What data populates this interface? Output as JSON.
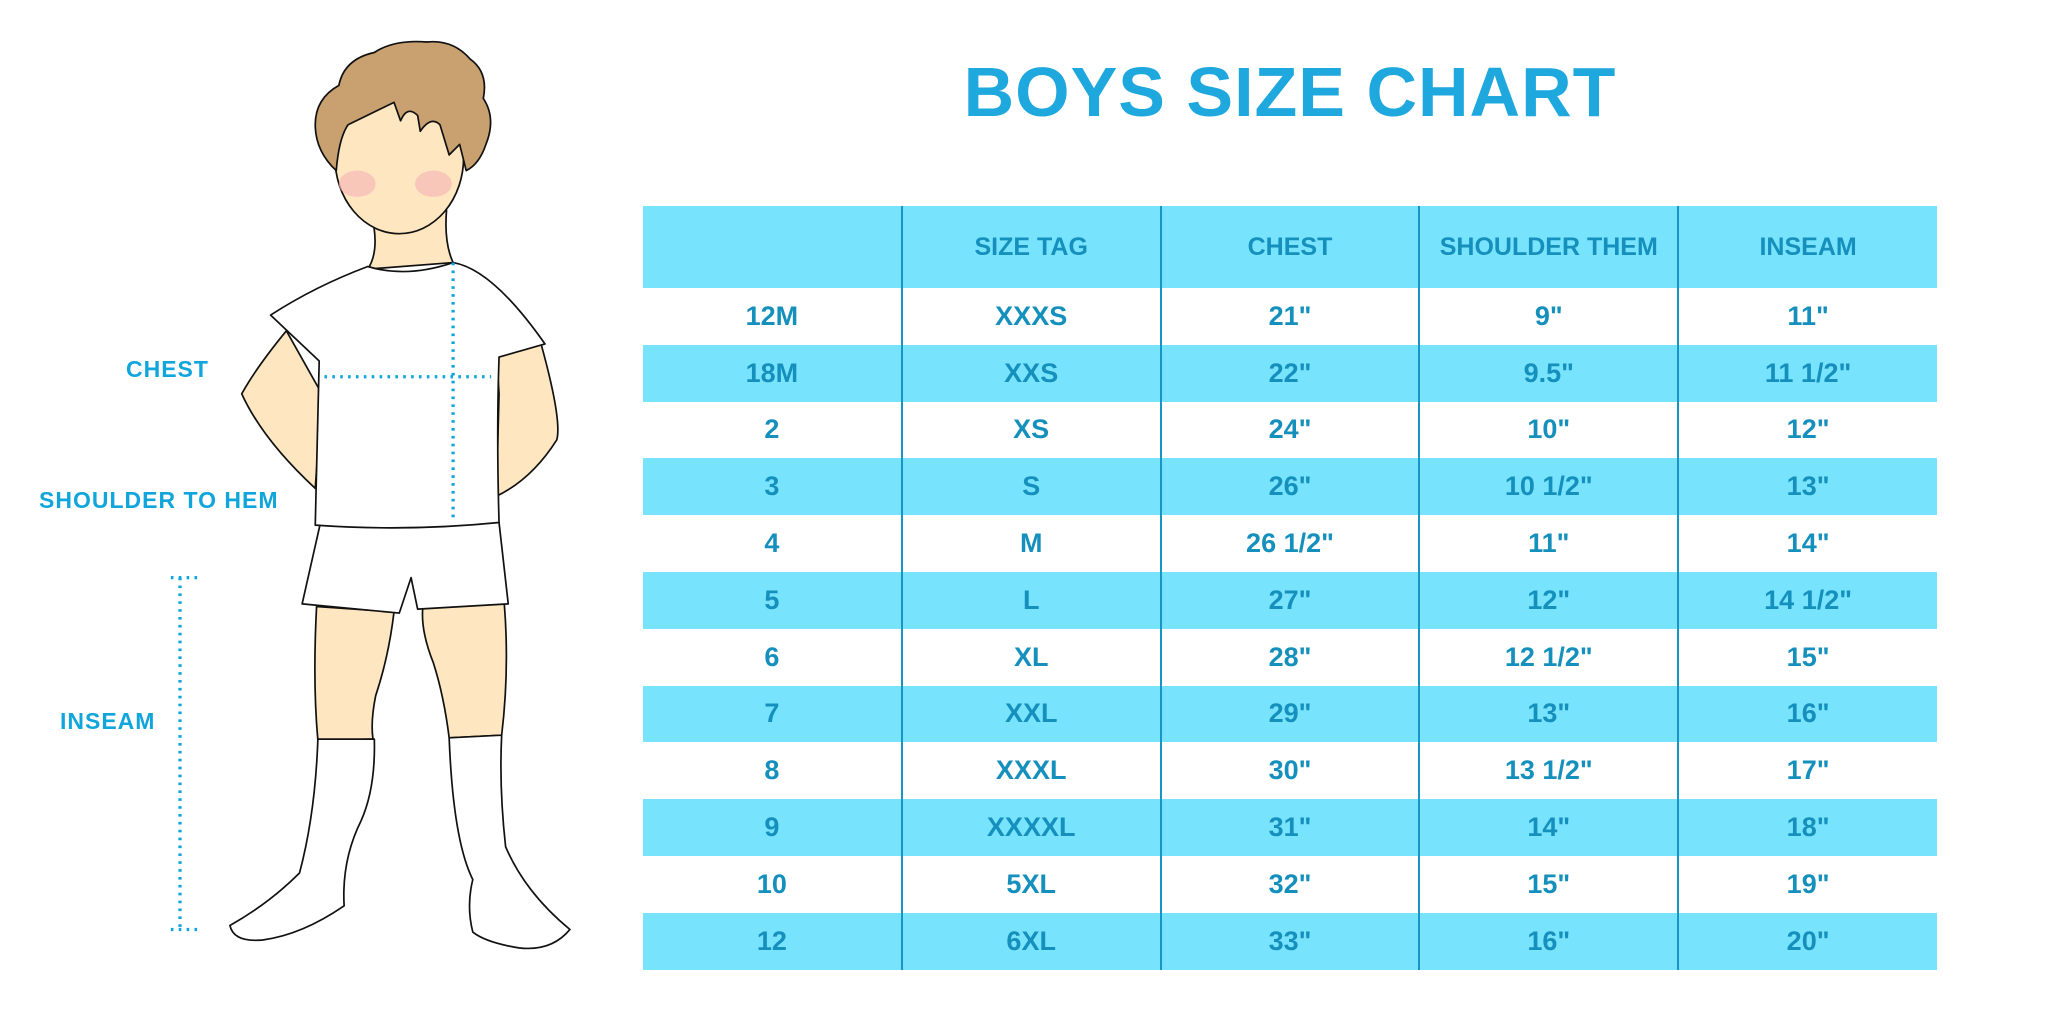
{
  "title": "BOYS SIZE CHART",
  "measure_labels": {
    "chest": "CHEST",
    "shoulder": "SHOULDER TO HEM",
    "inseam": "INSEAM"
  },
  "colors": {
    "title": "#1ea8dd",
    "row_highlight": "#77e3fd",
    "text": "#1590bd",
    "dotted_line": "#10a6dc"
  },
  "table": {
    "headers": [
      "",
      "SIZE TAG",
      "CHEST",
      "SHOULDER THEM",
      "INSEAM"
    ],
    "rows": [
      [
        "12M",
        "XXXS",
        "21\"",
        "9\"",
        "11\""
      ],
      [
        "18M",
        "XXS",
        "22\"",
        "9.5\"",
        "11 1/2\""
      ],
      [
        "2",
        "XS",
        "24\"",
        "10\"",
        "12\""
      ],
      [
        "3",
        "S",
        "26\"",
        "10 1/2\"",
        "13\""
      ],
      [
        "4",
        "M",
        "26 1/2\"",
        "11\"",
        "14\""
      ],
      [
        "5",
        "L",
        "27\"",
        "12\"",
        "14 1/2\""
      ],
      [
        "6",
        "XL",
        "28\"",
        "12 1/2\"",
        "15\""
      ],
      [
        "7",
        "XXL",
        "29\"",
        "13\"",
        "16\""
      ],
      [
        "8",
        "XXXL",
        "30\"",
        "13 1/2\"",
        "17\""
      ],
      [
        "9",
        "XXXXL",
        "31\"",
        "14\"",
        "18\""
      ],
      [
        "10",
        "5XL",
        "32\"",
        "15\"",
        "19\""
      ],
      [
        "12",
        "6XL",
        "33\"",
        "16\"",
        "20\""
      ]
    ]
  }
}
